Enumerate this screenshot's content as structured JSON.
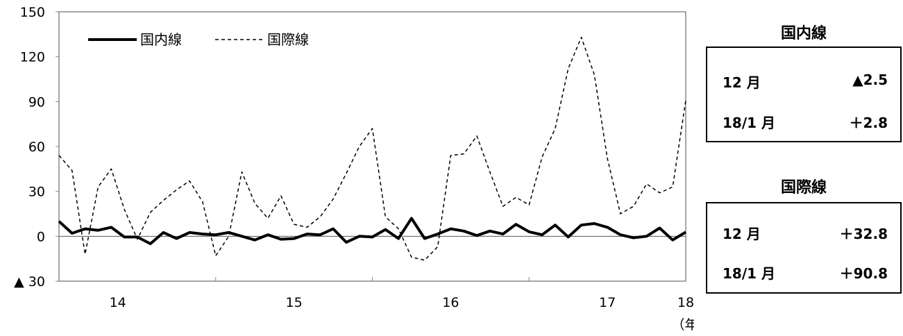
{
  "chart_data": {
    "type": "line",
    "y_axis": {
      "ylim": [
        -30,
        150
      ],
      "ticks": [
        150,
        120,
        90,
        60,
        30,
        0,
        -30
      ],
      "tick_labels": [
        "150",
        "120",
        "90",
        "60",
        "30",
        "0",
        "▲ 30"
      ]
    },
    "x_axis": {
      "ticks": [
        "14",
        "15",
        "16",
        "17",
        "18"
      ],
      "unit_label": "（年）"
    },
    "legend": {
      "position": "top-left",
      "entries": [
        "国内線",
        "国際線"
      ]
    },
    "series": [
      {
        "name": "国内線",
        "style": "solid-thick",
        "color": "#000000",
        "values": [
          10,
          2,
          5,
          4,
          6,
          -0.5,
          -0.5,
          -5,
          2.5,
          -1.5,
          2.5,
          1.5,
          1,
          2.5,
          0,
          -2.5,
          1,
          -2,
          -1.5,
          1.5,
          1,
          5,
          -4,
          0,
          -0.5,
          4.5,
          -1.5,
          12,
          -1.5,
          1.5,
          5,
          3.5,
          0.5,
          3.5,
          1.5,
          8,
          3,
          1,
          7.5,
          -0.5,
          7.5,
          8.5,
          6,
          1,
          -1,
          0,
          5.5,
          -2.5,
          2.8
        ]
      },
      {
        "name": "国際線",
        "style": "dashed",
        "color": "#000000",
        "values": [
          54,
          44,
          -12,
          33,
          45,
          18,
          -2,
          16,
          24,
          31,
          37,
          23,
          -13,
          0,
          43,
          22,
          12,
          27,
          8,
          6,
          13,
          25,
          42,
          60,
          72,
          13,
          5,
          -14,
          -16,
          -7,
          54,
          55,
          67,
          43,
          20,
          26,
          21,
          53,
          72,
          112,
          133,
          108,
          52,
          15,
          20,
          35,
          29,
          33,
          90.8
        ]
      }
    ]
  },
  "panels": [
    {
      "title": "国内線",
      "rows": [
        {
          "label": "12 月",
          "value": "▲2.5"
        },
        {
          "label": "18/1 月",
          "value": "＋2.8"
        }
      ]
    },
    {
      "title": "国際線",
      "rows": [
        {
          "label": "12 月",
          "value": "＋32.8"
        },
        {
          "label": "18/1 月",
          "value": "＋90.8"
        }
      ]
    }
  ]
}
